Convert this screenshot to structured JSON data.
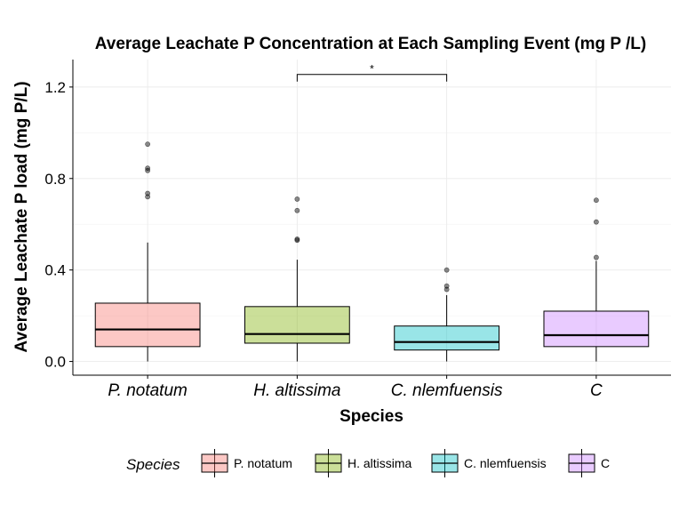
{
  "chart_data": {
    "type": "box",
    "title": "Average Leachate P Concentration at Each Sampling Event (mg P /L)",
    "xlabel": "Species",
    "ylabel": "Average Leachate P load (mg P/L)",
    "ylim": [
      -0.06,
      1.32
    ],
    "yticks": [
      0.0,
      0.4,
      0.8,
      1.2
    ],
    "ytick_labels": [
      "0.0",
      "0.4",
      "0.8",
      "1.2"
    ],
    "grid": true,
    "legend_position": "bottom",
    "legend_title": "Species",
    "categories": [
      "P. notatum",
      "H. altissima",
      "C. nlemfuensis",
      "C"
    ],
    "legend_labels": [
      "P. notatum",
      "H. altissima",
      "C. nlemfuensis",
      "C"
    ],
    "boxes": [
      {
        "min": 0.0,
        "q1": 0.065,
        "median": 0.14,
        "q3": 0.255,
        "whisker_high": 0.52,
        "outliers": [
          0.95,
          0.845,
          0.835,
          0.735,
          0.72
        ]
      },
      {
        "min": 0.0,
        "q1": 0.08,
        "median": 0.12,
        "q3": 0.24,
        "whisker_high": 0.445,
        "outliers": [
          0.71,
          0.66,
          0.535,
          0.53
        ]
      },
      {
        "min": 0.0,
        "q1": 0.05,
        "median": 0.085,
        "q3": 0.155,
        "whisker_high": 0.29,
        "outliers": [
          0.4,
          0.33,
          0.315
        ]
      },
      {
        "min": 0.0,
        "q1": 0.065,
        "median": 0.115,
        "q3": 0.22,
        "whisker_high": 0.44,
        "outliers": [
          0.705,
          0.61,
          0.455
        ]
      }
    ],
    "annotation": {
      "from": 1,
      "to": 2,
      "y": 1.255,
      "label": "*"
    },
    "colors": [
      "#F8766D",
      "#7CAE00",
      "#00BFC4",
      "#C77CFF"
    ]
  }
}
